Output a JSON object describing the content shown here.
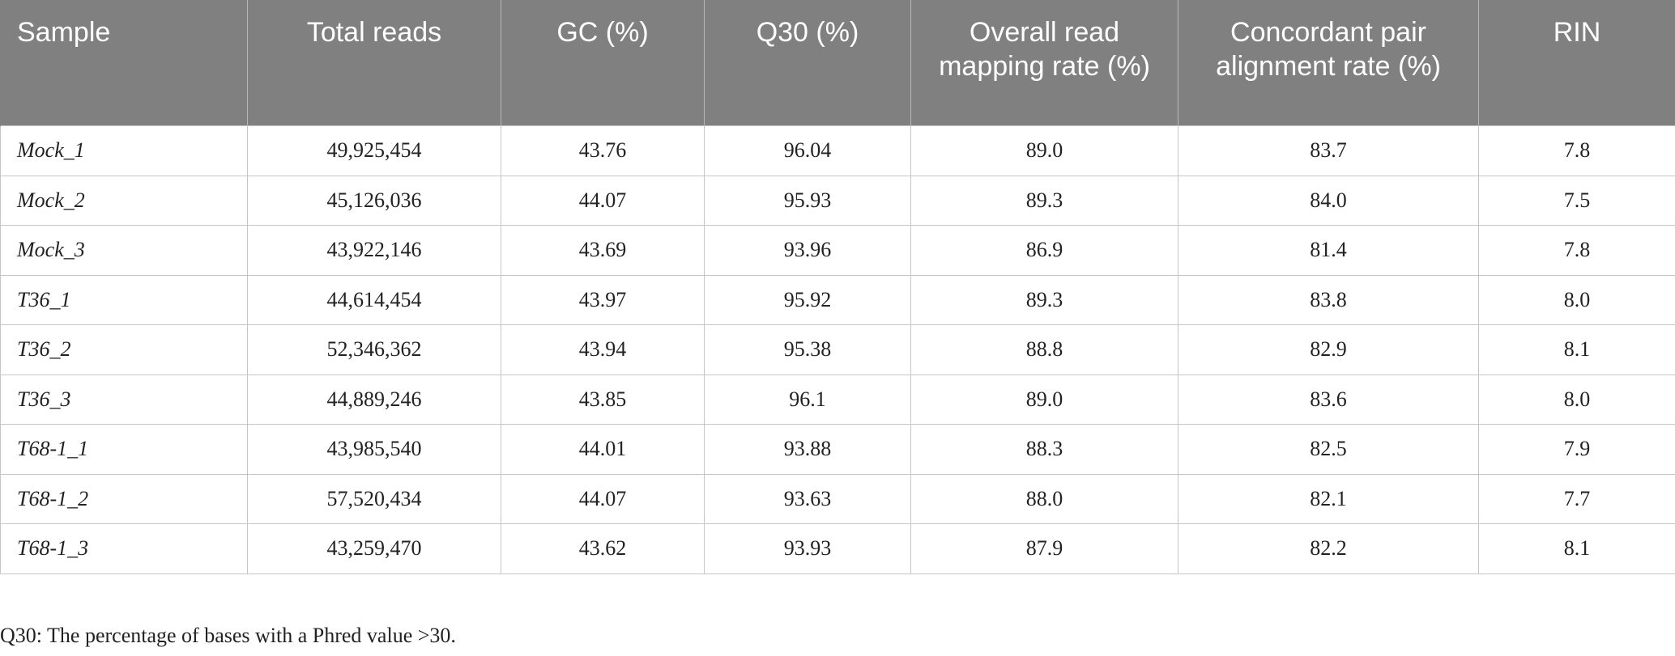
{
  "table": {
    "headers": [
      "Sample",
      "Total reads",
      "GC (%)",
      "Q30 (%)",
      "Overall read mapping rate (%)",
      "Concordant pair alignment rate (%)",
      "RIN"
    ],
    "rows": [
      [
        "Mock_1",
        "49,925,454",
        "43.76",
        "96.04",
        "89.0",
        "83.7",
        "7.8"
      ],
      [
        "Mock_2",
        "45,126,036",
        "44.07",
        "95.93",
        "89.3",
        "84.0",
        "7.5"
      ],
      [
        "Mock_3",
        "43,922,146",
        "43.69",
        "93.96",
        "86.9",
        "81.4",
        "7.8"
      ],
      [
        "T36_1",
        "44,614,454",
        "43.97",
        "95.92",
        "89.3",
        "83.8",
        "8.0"
      ],
      [
        "T36_2",
        "52,346,362",
        "43.94",
        "95.38",
        "88.8",
        "82.9",
        "8.1"
      ],
      [
        "T36_3",
        "44,889,246",
        "43.85",
        "96.1",
        "89.0",
        "83.6",
        "8.0"
      ],
      [
        "T68-1_1",
        "43,985,540",
        "44.01",
        "93.88",
        "88.3",
        "82.5",
        "7.9"
      ],
      [
        "T68-1_2",
        "57,520,434",
        "44.07",
        "93.63",
        "88.0",
        "82.1",
        "7.7"
      ],
      [
        "T68-1_3",
        "43,259,470",
        "43.62",
        "93.93",
        "87.9",
        "82.2",
        "8.1"
      ]
    ]
  },
  "footnote": "Q30: The percentage of bases with a Phred value >30.",
  "colors": {
    "header_bg": "#808080",
    "header_text": "#ffffff",
    "grid": "#c6c6c6"
  }
}
